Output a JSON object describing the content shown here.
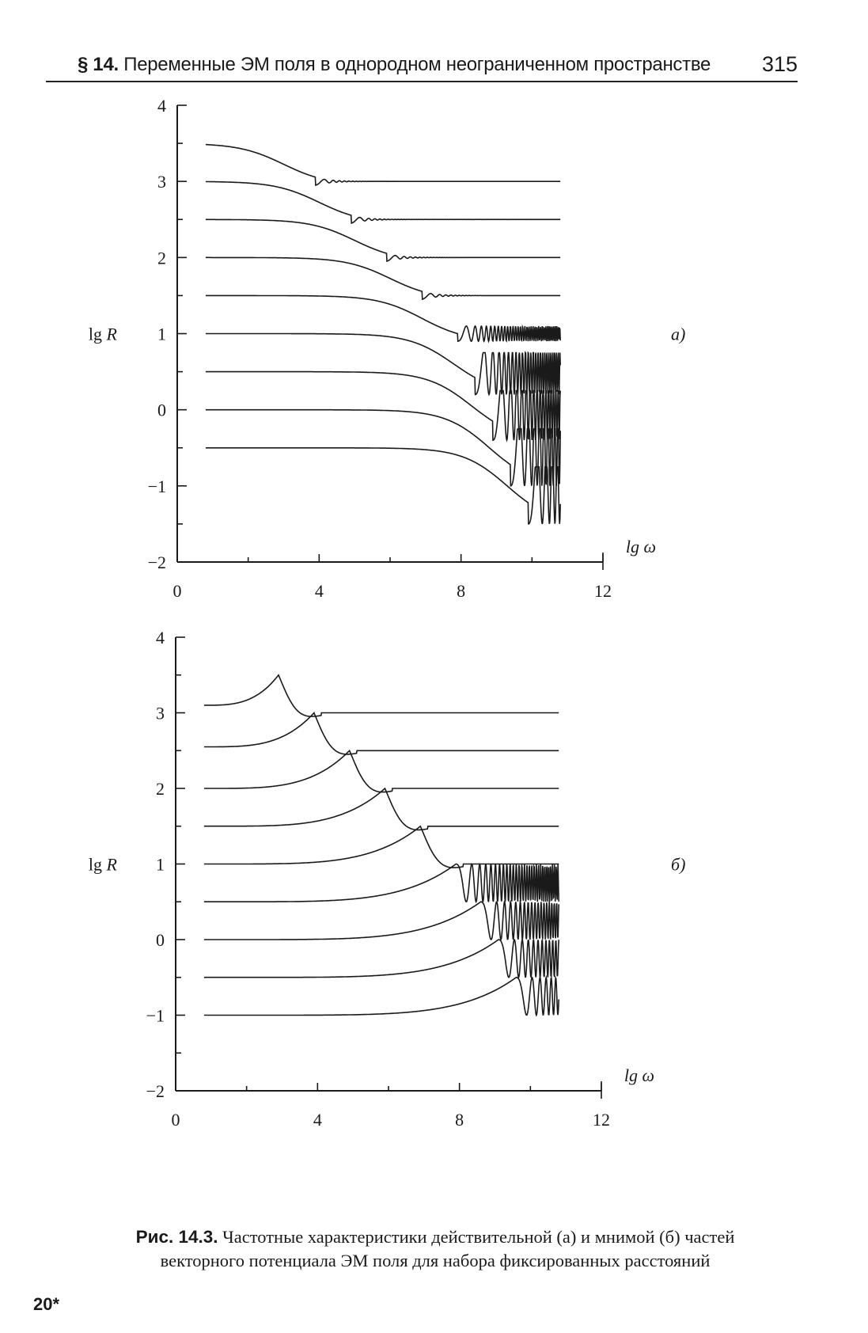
{
  "header": {
    "section_mark": "§ 14.",
    "section_title": "Переменные ЭМ поля в однородном неограниченном пространстве",
    "page_number": "315"
  },
  "chart_data": [
    {
      "panel_label": "а)",
      "type": "line",
      "xlabel": "lg ω",
      "ylabel": "lg R",
      "xlim": [
        0,
        12
      ],
      "ylim": [
        -2,
        4
      ],
      "xticks": [
        "0",
        "4",
        "8",
        "12"
      ],
      "yticks": [
        "4",
        "3",
        "2",
        "1",
        "0",
        "−1",
        "−2"
      ],
      "grid": false,
      "series": [
        {
          "x_start": 0.8,
          "x_end": 10.8,
          "low_freq_level": 3.5,
          "high_freq_level": 3.0,
          "transition_center": 3.0,
          "dip_x": 3.9,
          "dip_level": 2.95
        },
        {
          "x_start": 0.8,
          "x_end": 10.8,
          "low_freq_level": 3.0,
          "high_freq_level": 2.5,
          "transition_center": 4.0,
          "dip_x": 4.9,
          "dip_level": 2.45
        },
        {
          "x_start": 0.8,
          "x_end": 10.8,
          "low_freq_level": 2.5,
          "high_freq_level": 2.0,
          "transition_center": 5.0,
          "dip_x": 5.9,
          "dip_level": 1.95
        },
        {
          "x_start": 0.8,
          "x_end": 10.8,
          "low_freq_level": 2.0,
          "high_freq_level": 1.5,
          "transition_center": 6.0,
          "dip_x": 6.9,
          "dip_level": 1.45
        },
        {
          "x_start": 0.8,
          "x_end": 10.8,
          "low_freq_level": 1.5,
          "high_freq_level": 1.0,
          "transition_center": 6.9,
          "dip_x": 7.9,
          "dip_level": 0.9
        },
        {
          "x_start": 0.8,
          "x_end": 10.8,
          "low_freq_level": 1.0,
          "high_freq_level": 0.5,
          "transition_center": 7.8,
          "dip_x": 8.4,
          "dip_level": 0.2
        },
        {
          "x_start": 0.8,
          "x_end": 10.8,
          "low_freq_level": 0.5,
          "high_freq_level": 0.0,
          "transition_center": 8.3,
          "dip_x": 8.9,
          "dip_level": -0.4
        },
        {
          "x_start": 0.8,
          "x_end": 10.8,
          "low_freq_level": 0.0,
          "high_freq_level": -0.5,
          "transition_center": 8.8,
          "dip_x": 9.4,
          "dip_level": -1.0
        },
        {
          "x_start": 0.8,
          "x_end": 10.8,
          "low_freq_level": -0.5,
          "high_freq_level": -1.0,
          "transition_center": 9.3,
          "dip_x": 9.9,
          "dip_level": -1.5
        }
      ]
    },
    {
      "panel_label": "б)",
      "type": "line",
      "xlabel": "lg ω",
      "ylabel": "lg R",
      "xlim": [
        0,
        12
      ],
      "ylim": [
        -2,
        4
      ],
      "xticks": [
        "0",
        "4",
        "8",
        "12"
      ],
      "yticks": [
        "4",
        "3",
        "2",
        "1",
        "0",
        "−1",
        "−2"
      ],
      "grid": false,
      "series": [
        {
          "x_start": 0.8,
          "x_end": 10.8,
          "low_freq_level": 3.1,
          "peak_x": 2.9,
          "peak_level": 3.5,
          "high_freq_level": 3.0
        },
        {
          "x_start": 0.8,
          "x_end": 10.8,
          "low_freq_level": 2.55,
          "peak_x": 3.9,
          "peak_level": 3.0,
          "high_freq_level": 2.5
        },
        {
          "x_start": 0.8,
          "x_end": 10.8,
          "low_freq_level": 2.0,
          "peak_x": 4.9,
          "peak_level": 2.5,
          "high_freq_level": 2.0
        },
        {
          "x_start": 0.8,
          "x_end": 10.8,
          "low_freq_level": 1.5,
          "peak_x": 5.9,
          "peak_level": 2.0,
          "high_freq_level": 1.5
        },
        {
          "x_start": 0.8,
          "x_end": 10.8,
          "low_freq_level": 1.0,
          "peak_x": 6.9,
          "peak_level": 1.5,
          "high_freq_level": 1.0
        },
        {
          "x_start": 0.8,
          "x_end": 10.8,
          "low_freq_level": 0.5,
          "peak_x": 7.9,
          "peak_level": 1.0,
          "high_freq_level": 0.5
        },
        {
          "x_start": 0.8,
          "x_end": 10.8,
          "low_freq_level": 0.0,
          "peak_x": 8.6,
          "peak_level": 0.5,
          "high_freq_level": 0.0
        },
        {
          "x_start": 0.8,
          "x_end": 10.8,
          "low_freq_level": -0.5,
          "peak_x": 9.1,
          "peak_level": 0.0,
          "high_freq_level": -0.5
        },
        {
          "x_start": 0.8,
          "x_end": 10.8,
          "low_freq_level": -1.0,
          "peak_x": 9.6,
          "peak_level": -0.5,
          "high_freq_level": -1.0
        }
      ]
    }
  ],
  "caption": {
    "label": "Рис. 14.3.",
    "text_line1": "Частотные характеристики действительной (а) и мнимой (б) частей",
    "text_line2": "векторного потенциала ЭМ поля для набора фиксированных расстояний"
  },
  "signature_mark": "20*"
}
